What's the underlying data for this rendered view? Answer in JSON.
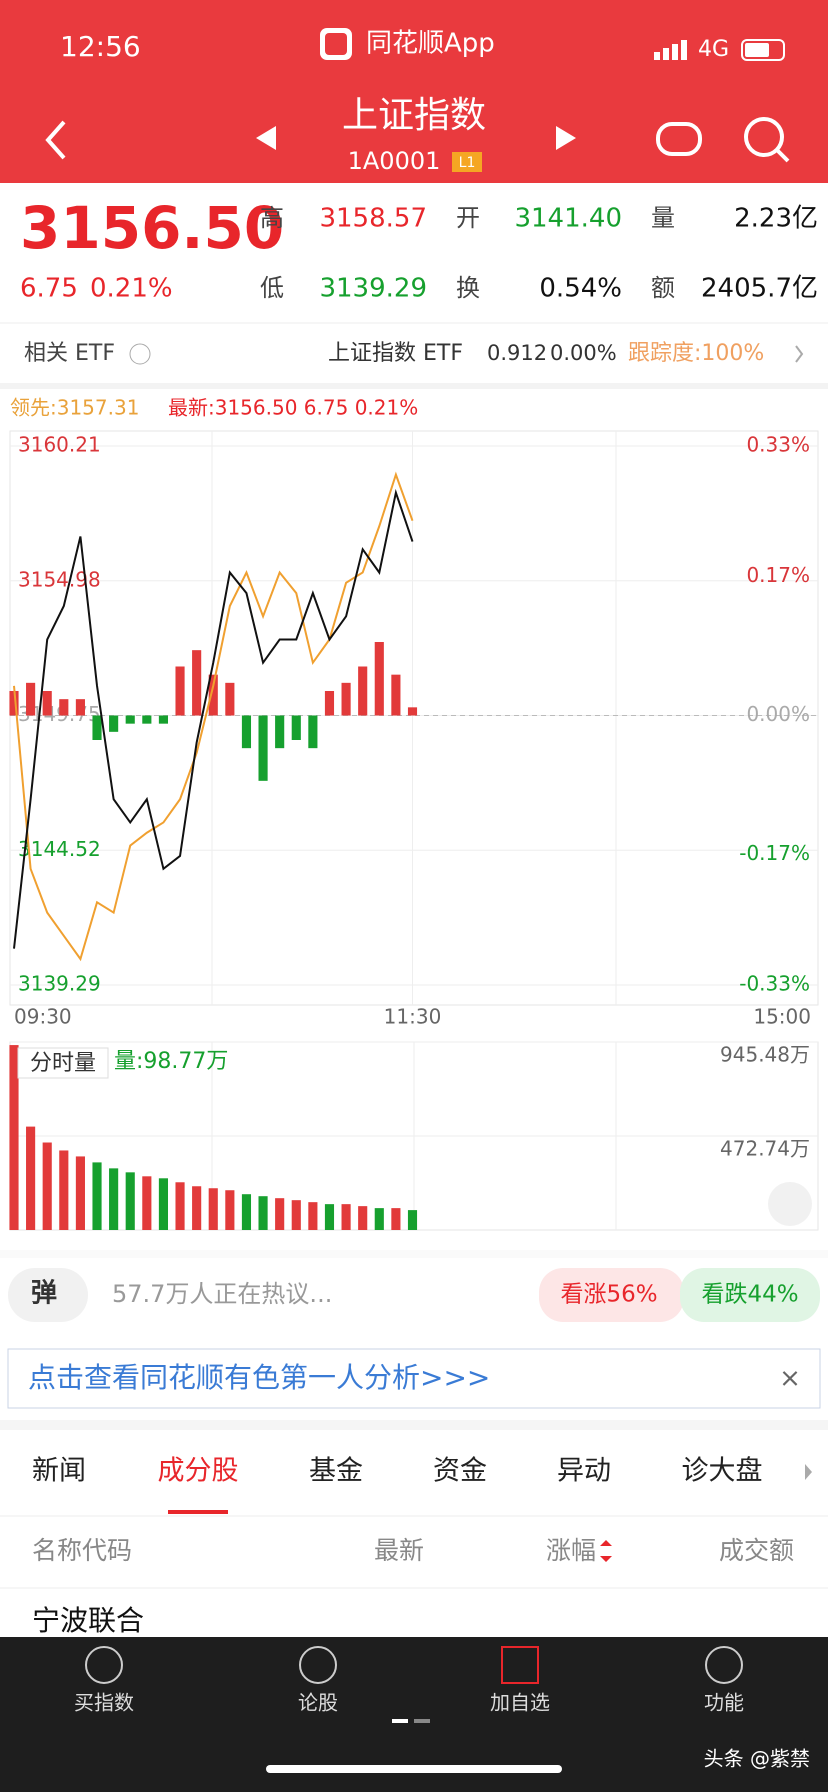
{
  "status": {
    "time": "12:56",
    "app": "同花顺App",
    "network": "4G"
  },
  "header": {
    "title": "上证指数",
    "code": "1A0001",
    "badge": "L1"
  },
  "quote": {
    "price": "3156.50",
    "change": "6.75",
    "pct": "0.21%",
    "fields": [
      {
        "label": "高",
        "value": "3158.57"
      },
      {
        "label": "开",
        "value": "3141.40"
      },
      {
        "label": "量",
        "value": "2.23亿"
      },
      {
        "label": "低",
        "value": "3139.29"
      },
      {
        "label": "换",
        "value": "0.54%"
      },
      {
        "label": "额",
        "value": "2405.7亿"
      }
    ]
  },
  "etf": {
    "label": "相关 ETF",
    "name": "上证指数 ETF",
    "price": "0.912",
    "pct": "0.00%",
    "tracking": "跟踪度:100%"
  },
  "intraday": {
    "type": "line",
    "legend_lead": "领先:3157.31",
    "legend_last": "最新:3156.50  6.75  0.21%",
    "x": [
      0,
      5,
      10,
      15,
      20,
      25,
      30,
      35,
      40,
      45,
      50,
      55,
      60,
      65,
      70,
      75,
      80,
      85,
      90,
      95,
      100,
      105,
      110,
      115,
      120
    ],
    "xlim": [
      0,
      240
    ],
    "xticks": [
      {
        "value": 0,
        "label": "09:30"
      },
      {
        "value": 120,
        "label": "11:30"
      },
      {
        "value": 240,
        "label": "15:00"
      }
    ],
    "ylim": [
      3139.29,
      3160.21
    ],
    "yticks": [
      3139.29,
      3144.52,
      3149.75,
      3154.98,
      3160.21
    ],
    "y2lim": [
      -0.33,
      0.33
    ],
    "y2ticks": [
      {
        "value": -0.33,
        "label": "-0.33%"
      },
      {
        "value": -0.17,
        "label": "-0.17%"
      },
      {
        "value": 0,
        "label": "0.00%"
      },
      {
        "value": 0.17,
        "label": "0.17%"
      },
      {
        "value": 0.33,
        "label": "0.33%"
      }
    ],
    "series": [
      {
        "color": "#111111",
        "values": [
          3140.7,
          3146.5,
          3152.7,
          3154.0,
          3156.7,
          3150.9,
          3146.5,
          3145.6,
          3146.5,
          3143.8,
          3144.3,
          3148.7,
          3151.8,
          3155.3,
          3154.5,
          3151.8,
          3152.7,
          3152.7,
          3154.5,
          3152.7,
          3153.6,
          3156.2,
          3155.3,
          3158.4,
          3156.5
        ]
      },
      {
        "color": "#f0a030",
        "values": [
          3150.9,
          3143.8,
          3142.1,
          3141.2,
          3140.3,
          3142.5,
          3142.1,
          3144.7,
          3145.2,
          3145.6,
          3146.5,
          3148.3,
          3150.9,
          3154.0,
          3155.3,
          3153.6,
          3155.3,
          3154.5,
          3151.8,
          3152.7,
          3154.9,
          3155.3,
          3157.1,
          3159.1,
          3157.31
        ]
      }
    ],
    "strength": {
      "axis": "y2",
      "up_color": "#e23a3a",
      "down_color": "#16a02e",
      "values": [
        0.03,
        0.04,
        0.03,
        0.02,
        0.02,
        -0.03,
        -0.02,
        -0.01,
        -0.01,
        -0.01,
        0.06,
        0.08,
        0.05,
        0.04,
        -0.04,
        -0.08,
        -0.04,
        -0.03,
        -0.04,
        0.03,
        0.04,
        0.06,
        0.09,
        0.05,
        0.01
      ]
    }
  },
  "volume": {
    "type": "bar",
    "label": "分时量",
    "current": "量:98.77万",
    "ylim": [
      0,
      945.48
    ],
    "yticks": [
      {
        "value": 472.74,
        "label": "472.74万"
      },
      {
        "value": 945.48,
        "label": "945.48万"
      }
    ],
    "values": [
      930,
      520,
      440,
      400,
      370,
      340,
      310,
      290,
      270,
      260,
      240,
      220,
      210,
      200,
      180,
      170,
      160,
      150,
      140,
      130,
      130,
      120,
      110,
      110,
      100
    ]
  },
  "comments": {
    "badge": "弹",
    "text": "57.7万人正在热议...",
    "up": "看涨56%",
    "down": "看跌44%"
  },
  "banner": {
    "text": "点击查看同花顺有色第一人分析>>>",
    "close": "×"
  },
  "tabs": [
    "新闻",
    "成分股",
    "基金",
    "资金",
    "异动",
    "诊大盘"
  ],
  "table": {
    "headers": [
      "名称代码",
      "最新",
      "涨幅",
      "成交额"
    ],
    "rows": [
      [
        "宁波联合"
      ]
    ]
  },
  "nav": [
    "买指数",
    "论股",
    "加自选",
    "功能"
  ],
  "watermark": "头条 @紫禁"
}
